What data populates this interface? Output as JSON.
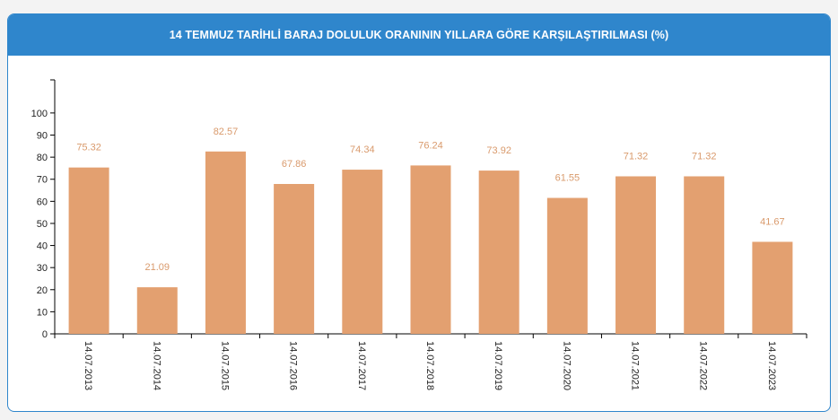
{
  "panel": {
    "title": "14 TEMMUZ TARİHLİ BARAJ DOLULUK ORANININ YILLARA GÖRE KARŞILAŞTIRILMASI (%)"
  },
  "colors": {
    "header": "#2f86cc",
    "bar": "#e3a070",
    "value_label": "#d99a6c",
    "axis": "#000000"
  },
  "chart_data": {
    "type": "bar",
    "categories": [
      "14.07.2013",
      "14.07.2014",
      "14.07.2015",
      "14.07.2016",
      "14.07.2017",
      "14.07.2018",
      "14.07.2019",
      "14.07.2020",
      "14.07.2021",
      "14.07.2022",
      "14.07.2023"
    ],
    "values": [
      75.32,
      21.09,
      82.57,
      67.86,
      74.34,
      76.24,
      73.92,
      61.55,
      71.32,
      71.32,
      41.67
    ],
    "value_labels": [
      "75.32",
      "21.09",
      "82.57",
      "67.86",
      "74.34",
      "76.24",
      "73.92",
      "61.55",
      "71.32",
      "71.32",
      "41.67"
    ],
    "yticks": [
      0,
      10,
      20,
      30,
      40,
      50,
      60,
      70,
      80,
      90,
      100
    ],
    "ylim": [
      0,
      115
    ],
    "xlabel": "",
    "ylabel": "",
    "grid": false,
    "legend": "none",
    "xtick_rotation": "90"
  }
}
